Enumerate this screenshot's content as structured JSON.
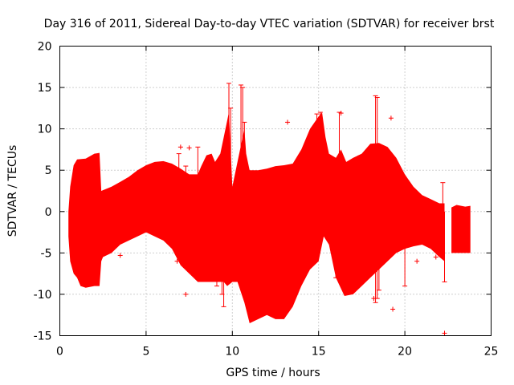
{
  "chart_data": {
    "type": "scatter",
    "title": "Day 316 of 2011, Sidereal Day-to-day VTEC variation (SDTVAR) for receiver brst",
    "xlabel": "GPS time / hours",
    "ylabel": "SDTVAR / TECUs",
    "xlim": [
      0,
      25
    ],
    "ylim": [
      -15,
      20
    ],
    "xticks": [
      0,
      5,
      10,
      15,
      20,
      25
    ],
    "yticks": [
      -15,
      -10,
      -5,
      0,
      5,
      10,
      15,
      20
    ],
    "grid": true,
    "marker": "+",
    "color": "#ff0000",
    "series": [
      {
        "name": "brst",
        "envelope_upper": [
          [
            0.5,
            0.0
          ],
          [
            0.6,
            3.0
          ],
          [
            0.8,
            5.6
          ],
          [
            1.0,
            6.3
          ],
          [
            1.5,
            6.4
          ],
          [
            2.0,
            7.0
          ],
          [
            2.3,
            7.1
          ],
          [
            2.4,
            2.5
          ],
          [
            3.0,
            3.0
          ],
          [
            3.5,
            3.6
          ],
          [
            4.0,
            4.2
          ],
          [
            4.5,
            5.0
          ],
          [
            5.0,
            5.6
          ],
          [
            5.5,
            6.0
          ],
          [
            6.0,
            6.1
          ],
          [
            6.5,
            5.8
          ],
          [
            7.0,
            5.2
          ],
          [
            7.5,
            4.5
          ],
          [
            8.0,
            4.5
          ],
          [
            8.2,
            5.5
          ],
          [
            8.5,
            6.8
          ],
          [
            8.8,
            7.0
          ],
          [
            9.0,
            6.0
          ],
          [
            9.3,
            7.0
          ],
          [
            9.5,
            9.0
          ],
          [
            9.7,
            11.0
          ],
          [
            9.8,
            12.0
          ],
          [
            10.0,
            3.0
          ],
          [
            10.3,
            6.0
          ],
          [
            10.5,
            8.0
          ],
          [
            10.7,
            10.0
          ],
          [
            10.8,
            7.0
          ],
          [
            11.0,
            5.0
          ],
          [
            11.5,
            5.0
          ],
          [
            12.0,
            5.2
          ],
          [
            12.5,
            5.5
          ],
          [
            13.0,
            5.6
          ],
          [
            13.5,
            5.8
          ],
          [
            14.0,
            7.5
          ],
          [
            14.5,
            10.0
          ],
          [
            15.0,
            11.5
          ],
          [
            15.2,
            12.0
          ],
          [
            15.4,
            9.0
          ],
          [
            15.6,
            7.0
          ],
          [
            16.0,
            6.5
          ],
          [
            16.3,
            7.5
          ],
          [
            16.6,
            6.0
          ],
          [
            17.0,
            6.5
          ],
          [
            17.5,
            7.0
          ],
          [
            18.0,
            8.2
          ],
          [
            18.5,
            8.3
          ],
          [
            19.0,
            7.8
          ],
          [
            19.5,
            6.5
          ],
          [
            20.0,
            4.5
          ],
          [
            20.5,
            3.0
          ],
          [
            21.0,
            2.0
          ],
          [
            21.5,
            1.5
          ],
          [
            22.0,
            1.0
          ],
          [
            22.3,
            1.0
          ]
        ],
        "envelope_lower": [
          [
            22.3,
            -6.0
          ],
          [
            22.0,
            -5.5
          ],
          [
            21.5,
            -4.5
          ],
          [
            21.0,
            -4.0
          ],
          [
            20.5,
            -4.2
          ],
          [
            20.0,
            -4.5
          ],
          [
            19.5,
            -5.0
          ],
          [
            19.0,
            -6.0
          ],
          [
            18.5,
            -7.0
          ],
          [
            18.0,
            -8.0
          ],
          [
            17.5,
            -9.0
          ],
          [
            17.0,
            -10.0
          ],
          [
            16.5,
            -10.2
          ],
          [
            16.0,
            -8.0
          ],
          [
            15.6,
            -4.0
          ],
          [
            15.3,
            -3.0
          ],
          [
            15.0,
            -6.0
          ],
          [
            14.5,
            -7.0
          ],
          [
            14.0,
            -9.0
          ],
          [
            13.5,
            -11.5
          ],
          [
            13.0,
            -13.0
          ],
          [
            12.5,
            -13.0
          ],
          [
            12.0,
            -12.5
          ],
          [
            11.5,
            -13.0
          ],
          [
            11.0,
            -13.5
          ],
          [
            10.7,
            -11.0
          ],
          [
            10.3,
            -8.5
          ],
          [
            10.0,
            -8.5
          ],
          [
            9.7,
            -9.0
          ],
          [
            9.5,
            -8.5
          ],
          [
            9.0,
            -8.5
          ],
          [
            8.5,
            -8.5
          ],
          [
            8.0,
            -8.5
          ],
          [
            7.5,
            -7.5
          ],
          [
            7.0,
            -6.5
          ],
          [
            6.5,
            -4.5
          ],
          [
            6.0,
            -3.5
          ],
          [
            5.5,
            -3.0
          ],
          [
            5.0,
            -2.5
          ],
          [
            4.5,
            -3.0
          ],
          [
            4.0,
            -3.5
          ],
          [
            3.5,
            -4.0
          ],
          [
            3.0,
            -5.0
          ],
          [
            2.5,
            -5.5
          ],
          [
            2.4,
            -6.0
          ],
          [
            2.3,
            -9.0
          ],
          [
            2.0,
            -9.0
          ],
          [
            1.5,
            -9.2
          ],
          [
            1.2,
            -9.0
          ],
          [
            1.0,
            -8.0
          ],
          [
            0.8,
            -7.5
          ],
          [
            0.6,
            -6.0
          ],
          [
            0.5,
            -3.0
          ]
        ],
        "segment2_upper": [
          [
            22.7,
            0.5
          ],
          [
            23.0,
            0.8
          ],
          [
            23.5,
            0.6
          ],
          [
            23.8,
            0.7
          ]
        ],
        "segment2_lower": [
          [
            23.8,
            -5.0
          ],
          [
            23.5,
            -5.0
          ],
          [
            23.0,
            -5.0
          ],
          [
            22.7,
            -5.0
          ]
        ],
        "spikes": [
          [
            9.8,
            15.5
          ],
          [
            10.5,
            15.3
          ],
          [
            10.6,
            15.0
          ],
          [
            9.9,
            12.5
          ],
          [
            15.1,
            12.0
          ],
          [
            14.9,
            11.8
          ],
          [
            18.3,
            14.0
          ],
          [
            18.4,
            13.8
          ],
          [
            16.2,
            12.0
          ],
          [
            10.7,
            10.8
          ],
          [
            9.5,
            -11.5
          ],
          [
            9.4,
            -10.0
          ],
          [
            18.3,
            -11.0
          ],
          [
            18.4,
            -10.5
          ],
          [
            18.5,
            -9.5
          ],
          [
            16.0,
            -8.0
          ],
          [
            22.2,
            3.5
          ],
          [
            22.3,
            -8.5
          ],
          [
            20.0,
            -9.0
          ],
          [
            9.1,
            -9.0
          ],
          [
            8.0,
            7.8
          ],
          [
            6.9,
            7.0
          ],
          [
            7.3,
            5.5
          ]
        ],
        "outliers": [
          [
            22.3,
            -14.7
          ],
          [
            19.3,
            -11.8
          ],
          [
            19.2,
            11.3
          ],
          [
            13.2,
            10.8
          ],
          [
            16.3,
            11.9
          ],
          [
            7.3,
            -10.0
          ],
          [
            7.0,
            7.8
          ],
          [
            7.5,
            7.7
          ],
          [
            20.7,
            -6.0
          ],
          [
            6.8,
            -6.0
          ],
          [
            3.5,
            -5.3
          ],
          [
            7.4,
            -6.5
          ],
          [
            16.5,
            4.0
          ],
          [
            17.3,
            6.5
          ],
          [
            18.2,
            -10.5
          ],
          [
            21.8,
            -5.5
          ]
        ]
      }
    ]
  }
}
